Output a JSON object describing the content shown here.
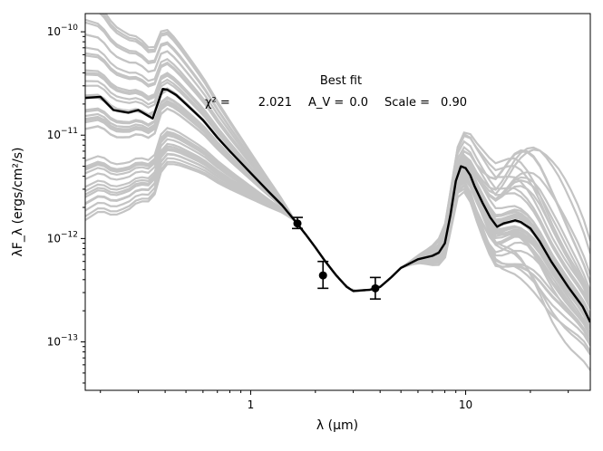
{
  "chart_data": {
    "type": "line",
    "x_scale": "log",
    "y_scale": "log",
    "xlim": [
      0.17,
      38
    ],
    "ylim": [
      3.4e-14,
      1.5e-10
    ],
    "xlabel": "λ (μm)",
    "ylabel": "λF_λ (ergs/cm²/s)",
    "x_ticks": [
      {
        "value": 1,
        "label": "1"
      },
      {
        "value": 10,
        "label": "10"
      }
    ],
    "y_ticks": [
      {
        "value": 1e-13,
        "base": "10",
        "exp": "−13"
      },
      {
        "value": 1e-12,
        "base": "10",
        "exp": "−12"
      },
      {
        "value": 1e-11,
        "base": "10",
        "exp": "−11"
      },
      {
        "value": 1e-10,
        "base": "10",
        "exp": "−10"
      }
    ],
    "annotation": {
      "title": "Best fit",
      "chi2_label": "χ² =",
      "chi2_value": "2.021",
      "av_label": "A_V =",
      "av_value": "0.0",
      "scale_label": "Scale =",
      "scale_value": "0.90"
    },
    "colors": {
      "best_fit": "#000000",
      "other_fits": "#c4c4c4",
      "points": "#000000"
    },
    "best_fit": {
      "name": "Best fit model",
      "x": [
        0.17,
        0.2,
        0.23,
        0.27,
        0.3,
        0.35,
        0.39,
        0.41,
        0.45,
        0.5,
        0.6,
        0.7,
        0.8,
        1.0,
        1.2,
        1.4,
        1.6,
        1.8,
        2.0,
        2.2,
        2.5,
        2.8,
        3.0,
        3.3,
        3.6,
        4.0,
        4.5,
        5.0,
        6.0,
        7.0,
        7.5,
        8.0,
        8.5,
        9.0,
        9.5,
        10.0,
        10.5,
        11.0,
        12.0,
        13.0,
        14.0,
        15.0,
        16.0,
        17.0,
        18.0,
        20.0,
        22.0,
        25.0,
        30.0,
        35.0,
        38.0
      ],
      "y": [
        2.3e-11,
        2.35e-11,
        1.75e-11,
        1.65e-11,
        1.75e-11,
        1.45e-11,
        2.8e-11,
        2.75e-11,
        2.45e-11,
        2e-11,
        1.4e-11,
        9.5e-12,
        7e-12,
        4.3e-12,
        2.9e-12,
        2.1e-12,
        1.5e-12,
        1.1e-12,
        8.2e-13,
        6.2e-13,
        4.4e-13,
        3.4e-13,
        3.1e-13,
        3.15e-13,
        3.2e-13,
        3.4e-13,
        4.2e-13,
        5.2e-13,
        6.3e-13,
        6.8e-13,
        7.3e-13,
        9e-13,
        1.7e-12,
        3.6e-12,
        5e-12,
        4.8e-12,
        4.1e-12,
        3.2e-12,
        2.2e-12,
        1.6e-12,
        1.3e-12,
        1.4e-12,
        1.45e-12,
        1.5e-12,
        1.45e-12,
        1.25e-12,
        9.5e-13,
        6e-13,
        3.4e-13,
        2.2e-13,
        1.55e-13
      ]
    },
    "points": [
      {
        "x": 1.65,
        "y": 1.4e-12,
        "yerr_low": 1.25e-12,
        "yerr_high": 1.6e-12
      },
      {
        "x": 2.17,
        "y": 4.4e-13,
        "yerr_low": 3.3e-13,
        "yerr_high": 6e-13
      },
      {
        "x": 3.8,
        "y": 3.3e-13,
        "yerr_low": 2.6e-13,
        "yerr_high": 4.2e-13
      }
    ]
  }
}
